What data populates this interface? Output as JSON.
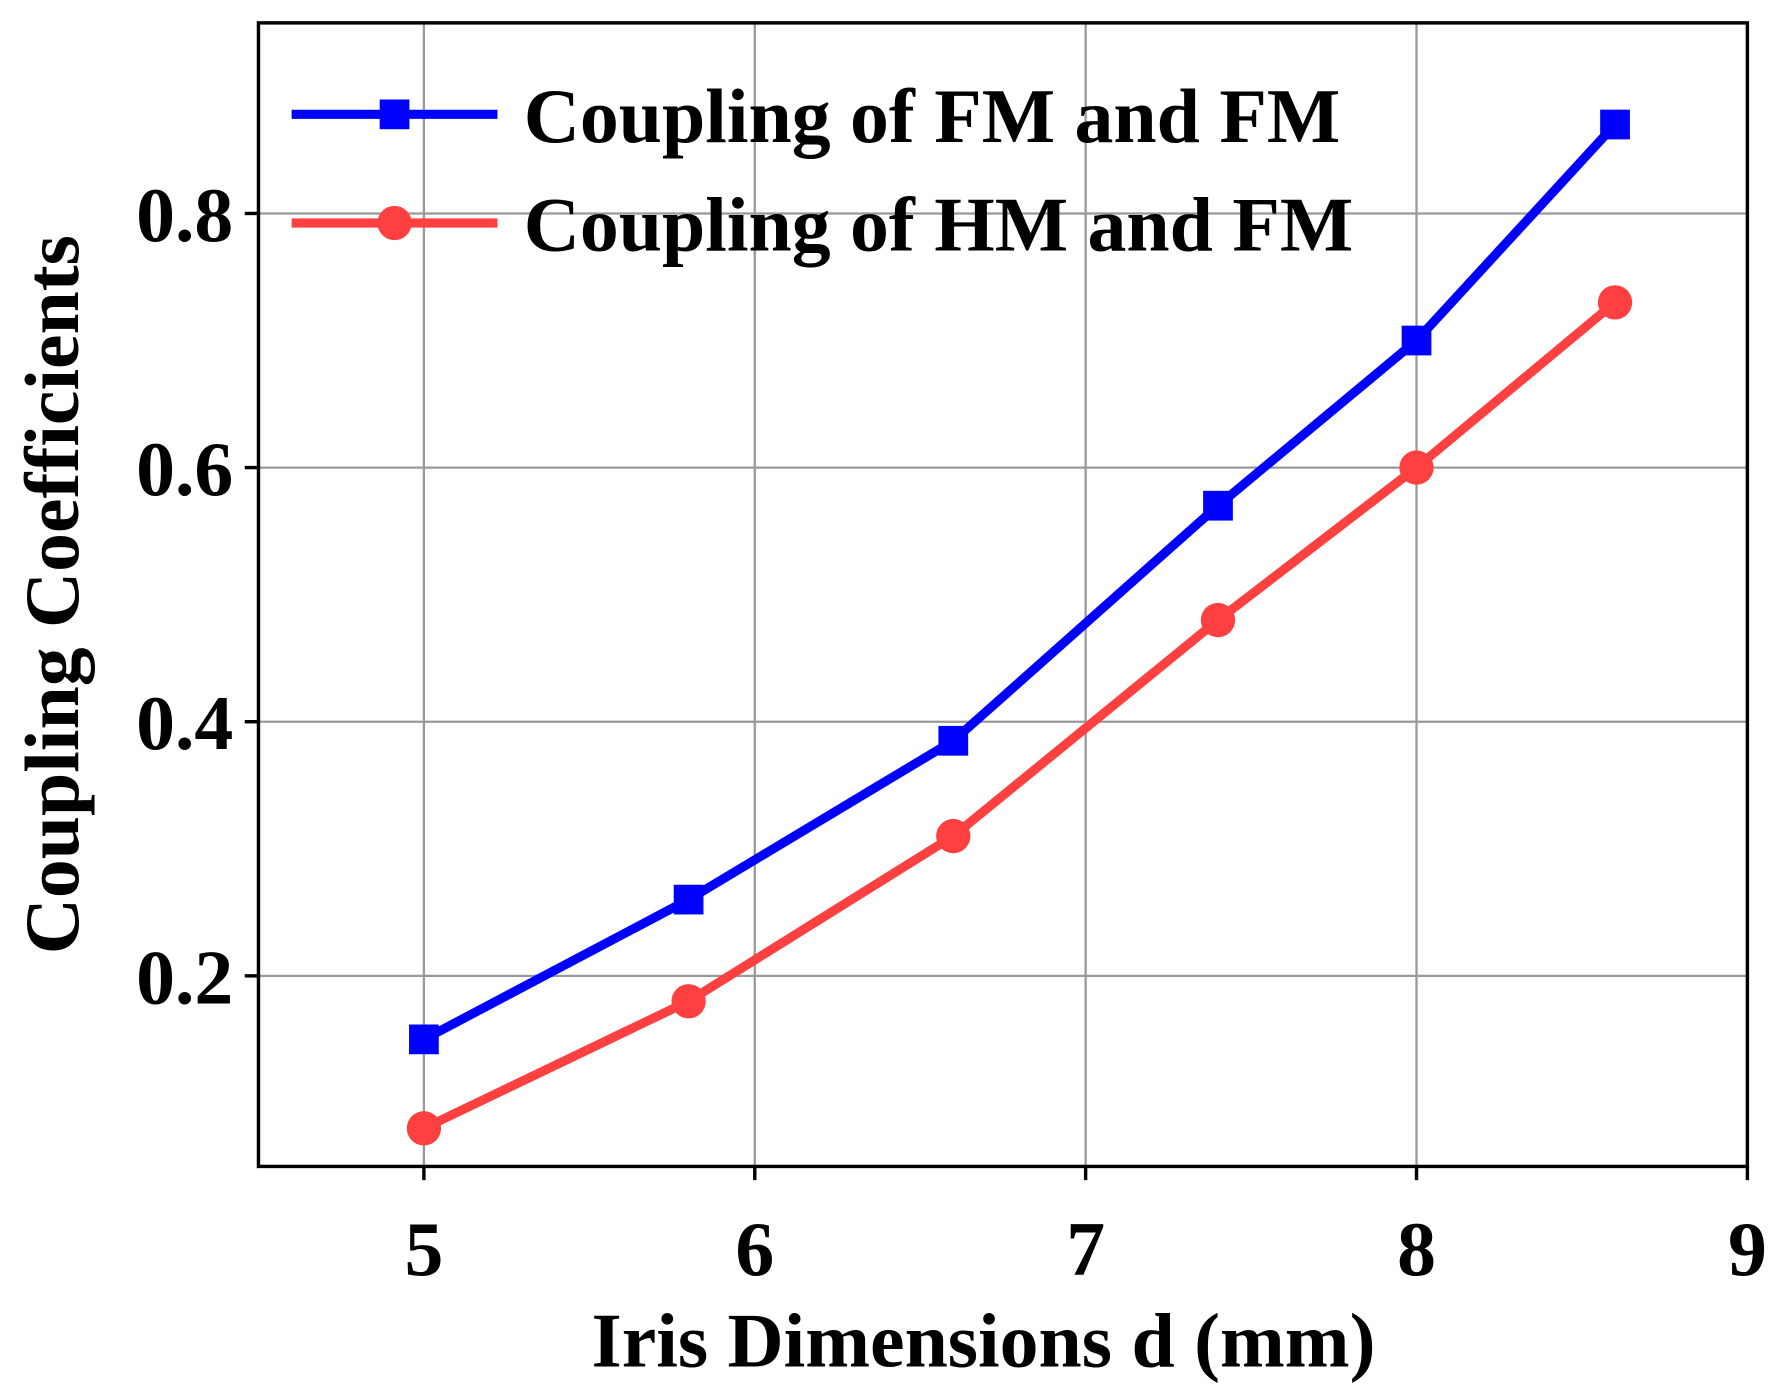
{
  "chart_data": {
    "type": "line",
    "x_label": "Iris Dimensions d (mm)",
    "y_label": "Coupling Coefficients",
    "x": [
      5,
      5.8,
      6.6,
      7.4,
      8,
      8.6
    ],
    "series": [
      {
        "name": "Coupling of FM and FM",
        "color": "#0000ff",
        "marker": "square",
        "values": [
          0.15,
          0.26,
          0.385,
          0.57,
          0.7,
          0.87
        ]
      },
      {
        "name": "Coupling of HM and FM",
        "color": "#ff4040",
        "marker": "circle",
        "values": [
          0.08,
          0.18,
          0.31,
          0.48,
          0.6,
          0.73
        ]
      }
    ],
    "xlim": [
      4.5,
      9
    ],
    "xticks": [
      5,
      6,
      7,
      8,
      9
    ],
    "ylim": [
      0.05,
      0.95
    ],
    "yticks": [
      0.2,
      0.4,
      0.6,
      0.8
    ],
    "grid": true,
    "legend": "upper left"
  }
}
